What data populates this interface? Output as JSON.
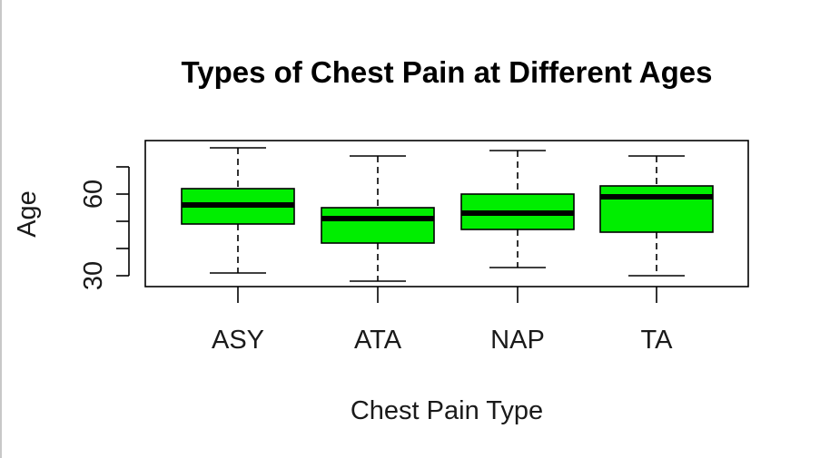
{
  "chart_data": {
    "type": "boxplot",
    "title": "Types of Chest Pain at Different Ages",
    "xlabel": "Chest Pain Type",
    "ylabel": "Age",
    "categories": [
      "ASY",
      "ATA",
      "NAP",
      "TA"
    ],
    "ylim": [
      26,
      80
    ],
    "yticks": [
      30,
      40,
      50,
      60,
      70
    ],
    "ytick_labels": [
      "30",
      "",
      "",
      "60",
      ""
    ],
    "box_color": "#00ee00",
    "boxes": [
      {
        "name": "ASY",
        "whisker_low": 31,
        "q1": 49,
        "median": 56,
        "q3": 62,
        "whisker_high": 77
      },
      {
        "name": "ATA",
        "whisker_low": 28,
        "q1": 42,
        "median": 51,
        "q3": 55,
        "whisker_high": 74
      },
      {
        "name": "NAP",
        "whisker_low": 33,
        "q1": 47,
        "median": 53,
        "q3": 60,
        "whisker_high": 76
      },
      {
        "name": "TA",
        "whisker_low": 30,
        "q1": 46,
        "median": 59,
        "q3": 63,
        "whisker_high": 74
      }
    ]
  }
}
